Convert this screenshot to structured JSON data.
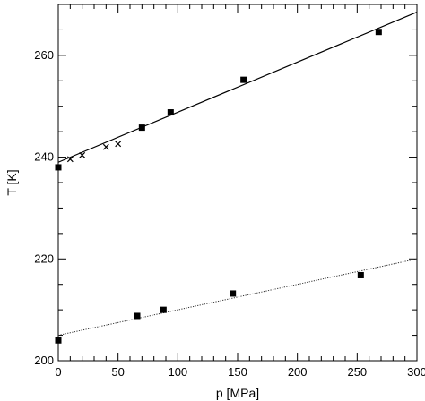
{
  "chart_data": {
    "type": "scatter",
    "xlabel": "p [MPa]",
    "ylabel": "T [K]",
    "xlim": [
      0,
      300
    ],
    "ylim": [
      200,
      270
    ],
    "x_ticks": [
      0,
      50,
      100,
      150,
      200,
      250,
      300
    ],
    "x_tick_labels": [
      "0",
      "50",
      "100",
      "150",
      "200",
      "250",
      "300"
    ],
    "y_ticks": [
      200,
      220,
      240,
      260
    ],
    "y_tick_labels": [
      "200",
      "220",
      "240",
      "260"
    ],
    "grid": false,
    "series": [
      {
        "marker": "square",
        "points": [
          [
            0,
            238
          ],
          [
            70,
            245.8
          ],
          [
            94,
            248.8
          ],
          [
            155,
            255.2
          ],
          [
            268,
            264.6
          ]
        ]
      },
      {
        "marker": "cross",
        "points": [
          [
            10,
            239.6
          ],
          [
            20,
            240.4
          ],
          [
            40,
            242
          ],
          [
            50,
            242.6
          ]
        ]
      },
      {
        "marker": "square",
        "points": [
          [
            0,
            204
          ],
          [
            66,
            208.8
          ],
          [
            88,
            210
          ],
          [
            146,
            213.2
          ],
          [
            253,
            216.8
          ]
        ]
      },
      {
        "marker": "line",
        "style": "solid",
        "points": [
          [
            0,
            239
          ],
          [
            300,
            268.5
          ]
        ]
      },
      {
        "marker": "line",
        "style": "dotted",
        "points": [
          [
            0,
            205
          ],
          [
            300,
            220
          ]
        ]
      }
    ]
  }
}
